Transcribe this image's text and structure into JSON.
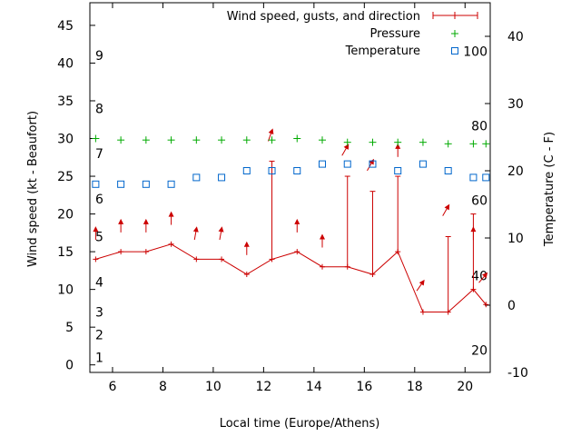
{
  "chart_data": {
    "type": "line",
    "title": "",
    "xlabel": "Local time (Europe/Athens)",
    "ylabel": "Wind speed (kt - Beaufort)",
    "y2label": "Temperature (C - F)",
    "xlim": [
      5.1,
      21.0
    ],
    "ylim": [
      -1,
      48
    ],
    "y2lim": [
      -10,
      45
    ],
    "x_ticks": [
      6,
      8,
      10,
      12,
      14,
      16,
      18,
      20
    ],
    "y_ticks": [
      0,
      5,
      10,
      15,
      20,
      25,
      30,
      35,
      40,
      45
    ],
    "y2_ticks": [
      -10,
      0,
      10,
      20,
      30,
      40
    ],
    "beaufort_labels": [
      {
        "text": "1",
        "y": 1
      },
      {
        "text": "2",
        "y": 4
      },
      {
        "text": "3",
        "y": 7
      },
      {
        "text": "4",
        "y": 11
      },
      {
        "text": "5",
        "y": 17
      },
      {
        "text": "6",
        "y": 22
      },
      {
        "text": "7",
        "y": 28
      },
      {
        "text": "8",
        "y": 34
      },
      {
        "text": "9",
        "y": 41
      }
    ],
    "fahrenheit_labels": [
      {
        "text": "20",
        "y2": -6.7
      },
      {
        "text": "40",
        "y2": 4.4
      },
      {
        "text": "60",
        "y2": 15.6
      },
      {
        "text": "80",
        "y2": 26.7
      },
      {
        "text": "100",
        "y2": 37.8
      }
    ],
    "legend": {
      "position": "top-right",
      "entries": [
        "Wind speed, gusts, and direction",
        "Pressure",
        "Temperature"
      ]
    },
    "series": [
      {
        "name": "Wind speed, gusts, and direction",
        "color": "#cc0000",
        "x": [
          5.33,
          6.33,
          7.33,
          8.33,
          9.33,
          10.33,
          11.33,
          12.33,
          13.33,
          14.33,
          15.33,
          16.33,
          17.33,
          18.33,
          19.33,
          20.33,
          20.83
        ],
        "values": [
          14,
          15,
          15,
          16,
          14,
          14,
          12,
          14,
          15,
          13,
          13,
          12,
          15,
          7,
          7,
          10,
          8
        ],
        "gusts": [
          null,
          null,
          null,
          null,
          null,
          null,
          null,
          27,
          null,
          null,
          25,
          23,
          25,
          null,
          17,
          20,
          null
        ]
      },
      {
        "name": "Direction arrows",
        "color": "#cc0000",
        "x": [
          5.33,
          6.33,
          7.33,
          8.33,
          9.33,
          10.33,
          11.33,
          12.33,
          13.33,
          14.33,
          15.33,
          16.33,
          17.33,
          18.33,
          19.33,
          20.33,
          20.83
        ],
        "values": [
          18,
          19,
          19,
          20,
          18,
          18,
          16,
          31,
          19,
          17,
          29,
          27,
          29,
          11,
          21,
          18,
          12
        ],
        "directions_deg": [
          0,
          0,
          0,
          0,
          10,
          10,
          0,
          20,
          0,
          0,
          30,
          30,
          0,
          35,
          30,
          0,
          40
        ]
      },
      {
        "name": "Pressure",
        "color": "#00aa00",
        "x": [
          5.33,
          6.33,
          7.33,
          8.33,
          9.33,
          10.33,
          11.33,
          12.33,
          13.33,
          14.33,
          15.33,
          16.33,
          17.33,
          18.33,
          19.33,
          20.33,
          20.83
        ],
        "values": [
          30,
          29.8,
          29.8,
          29.8,
          29.8,
          29.8,
          29.8,
          29.8,
          30,
          29.8,
          29.5,
          29.5,
          29.5,
          29.5,
          29.3,
          29.3,
          29.3
        ]
      },
      {
        "name": "Temperature",
        "color": "#0066cc",
        "x": [
          5.33,
          6.33,
          7.33,
          8.33,
          9.33,
          10.33,
          11.33,
          12.33,
          13.33,
          14.33,
          15.33,
          16.33,
          17.33,
          18.33,
          19.33,
          20.33,
          20.83
        ],
        "values": [
          18,
          18,
          18,
          18,
          19,
          19,
          20,
          20,
          20,
          21,
          21,
          21,
          20,
          21,
          20,
          19,
          19
        ]
      }
    ]
  }
}
